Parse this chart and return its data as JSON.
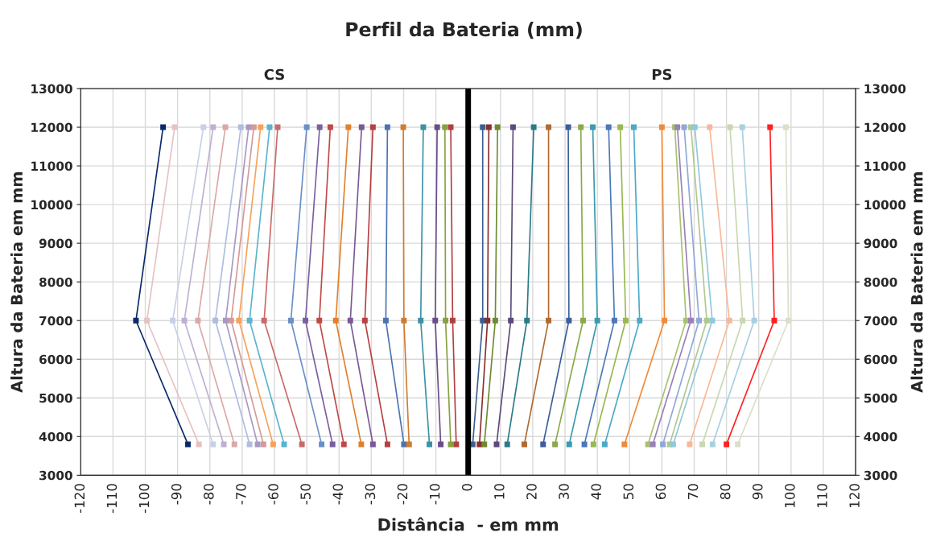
{
  "chart_data": {
    "type": "line",
    "title": "Perfil da Bateria (mm)",
    "xlabel": "Distância  - em mm",
    "ylabel": "Altura da Bateria em mm",
    "y2label": "Altura da Bateria em mm",
    "annotations": [
      "CS",
      "PS"
    ],
    "xlim": [
      -120,
      120
    ],
    "xticks": [
      -120,
      -110,
      -100,
      -90,
      -80,
      -70,
      -60,
      -50,
      -40,
      -30,
      -20,
      -10,
      0,
      10,
      20,
      30,
      40,
      50,
      60,
      70,
      80,
      90,
      100,
      110,
      120
    ],
    "ylim": [
      3000,
      13000
    ],
    "yticks": [
      3000,
      4000,
      5000,
      6000,
      7000,
      8000,
      9000,
      10000,
      11000,
      12000,
      13000
    ],
    "y2lim": [
      3000,
      13000
    ],
    "y2ticks": [
      3000,
      4000,
      5000,
      6000,
      7000,
      8000,
      9000,
      10000,
      11000,
      12000,
      13000
    ],
    "grid": true,
    "legend": false,
    "marker": "square",
    "line_style": "solid",
    "ref_lines": [
      {
        "axis": "x",
        "value": 0,
        "color": "#000000"
      }
    ],
    "series": [
      {
        "color": "#0b2a6b",
        "x": [
          -86.8,
          -102.9,
          -94.5
        ],
        "values": [
          3800,
          7000,
          12000
        ]
      },
      {
        "color": "#e6c2c2",
        "x": [
          -83.4,
          -99.5,
          -90.9
        ],
        "values": [
          3800,
          7000,
          12000
        ]
      },
      {
        "color": "#c8d0e6",
        "x": [
          -79.0,
          -91.5,
          -82.0
        ],
        "values": [
          3800,
          7000,
          12000
        ]
      },
      {
        "color": "#bdb0d0",
        "x": [
          -75.7,
          -87.9,
          -79.0
        ],
        "values": [
          3800,
          7000,
          12000
        ]
      },
      {
        "color": "#dba8a8",
        "x": [
          -72.4,
          -83.7,
          -75.2
        ],
        "values": [
          3800,
          7000,
          12000
        ]
      },
      {
        "color": "#aebde0",
        "x": [
          -67.7,
          -78.3,
          -70.4
        ],
        "values": [
          3800,
          7000,
          12000
        ]
      },
      {
        "color": "#a898c4",
        "x": [
          -65.2,
          -75.1,
          -68.0
        ],
        "values": [
          3800,
          7000,
          12000
        ]
      },
      {
        "color": "#d49a98",
        "x": [
          -63.4,
          -73.4,
          -66.4
        ],
        "values": [
          3800,
          7000,
          12000
        ]
      },
      {
        "color": "#f7a25a",
        "x": [
          -60.4,
          -71.0,
          -64.3
        ],
        "values": [
          3800,
          7000,
          12000
        ]
      },
      {
        "color": "#5ab4cc",
        "x": [
          -57.0,
          -67.7,
          -61.5
        ],
        "values": [
          3800,
          7000,
          12000
        ]
      },
      {
        "color": "#c96a6a",
        "x": [
          -51.5,
          -63.2,
          -59.0
        ],
        "values": [
          3800,
          7000,
          12000
        ]
      },
      {
        "color": "#6a8fc8",
        "x": [
          -45.4,
          -54.9,
          -50.0
        ],
        "values": [
          3800,
          7000,
          12000
        ]
      },
      {
        "color": "#7a5fa0",
        "x": [
          -42.0,
          -50.4,
          -46.0
        ],
        "values": [
          3800,
          7000,
          12000
        ]
      },
      {
        "color": "#c04848",
        "x": [
          -38.5,
          -46.1,
          -42.7
        ],
        "values": [
          3800,
          7000,
          12000
        ]
      },
      {
        "color": "#e0802c",
        "x": [
          -33.1,
          -41.0,
          -37.1
        ],
        "values": [
          3800,
          7000,
          12000
        ]
      },
      {
        "color": "#7a5896",
        "x": [
          -29.5,
          -36.5,
          -33.0
        ],
        "values": [
          3800,
          7000,
          12000
        ]
      },
      {
        "color": "#b84040",
        "x": [
          -25.0,
          -32.0,
          -29.5
        ],
        "values": [
          3800,
          7000,
          12000
        ]
      },
      {
        "color": "#4a74b0",
        "x": [
          -19.9,
          -25.5,
          -25.0
        ],
        "values": [
          3800,
          7000,
          12000
        ]
      },
      {
        "color": "#d07c30",
        "x": [
          -18.3,
          -19.9,
          -20.1
        ],
        "values": [
          3800,
          7000,
          12000
        ]
      },
      {
        "color": "#3a92a6",
        "x": [
          -12.0,
          -14.7,
          -13.9
        ],
        "values": [
          3800,
          7000,
          12000
        ]
      },
      {
        "color": "#6a4c8a",
        "x": [
          -8.5,
          -10.2,
          -9.6
        ],
        "values": [
          3800,
          7000,
          12000
        ]
      },
      {
        "color": "#88a040",
        "x": [
          -5.4,
          -7.0,
          -7.2
        ],
        "values": [
          3800,
          7000,
          12000
        ]
      },
      {
        "color": "#b04040",
        "x": [
          -3.7,
          -4.8,
          -5.4
        ],
        "values": [
          3800,
          7000,
          12000
        ]
      },
      {
        "color": "#3a5f8f",
        "x": [
          1.4,
          4.5,
          4.5
        ],
        "values": [
          3800,
          7000,
          12000
        ]
      },
      {
        "color": "#8b2e2e",
        "x": [
          3.5,
          6.0,
          6.4
        ],
        "values": [
          3800,
          7000,
          12000
        ]
      },
      {
        "color": "#6e8a30",
        "x": [
          5.0,
          8.4,
          9.1
        ],
        "values": [
          3800,
          7000,
          12000
        ]
      },
      {
        "color": "#5c4a7a",
        "x": [
          8.8,
          13.2,
          13.9
        ],
        "values": [
          3800,
          7000,
          12000
        ]
      },
      {
        "color": "#2a7a8a",
        "x": [
          12.1,
          18.2,
          20.3
        ],
        "values": [
          3800,
          7000,
          12000
        ]
      },
      {
        "color": "#b06a30",
        "x": [
          17.4,
          24.9,
          24.9
        ],
        "values": [
          3800,
          7000,
          12000
        ]
      },
      {
        "color": "#3a5f9a",
        "x": [
          23.2,
          31.2,
          31.0
        ],
        "values": [
          3800,
          7000,
          12000
        ]
      },
      {
        "color": "#8aaa48",
        "x": [
          26.9,
          35.6,
          34.9
        ],
        "values": [
          3800,
          7000,
          12000
        ]
      },
      {
        "color": "#3a9ab0",
        "x": [
          31.3,
          40.0,
          38.6
        ],
        "values": [
          3800,
          7000,
          12000
        ]
      },
      {
        "color": "#4a78b8",
        "x": [
          36.0,
          45.3,
          43.5
        ],
        "values": [
          3800,
          7000,
          12000
        ]
      },
      {
        "color": "#98b850",
        "x": [
          38.8,
          48.8,
          47.1
        ],
        "values": [
          3800,
          7000,
          12000
        ]
      },
      {
        "color": "#4aaac8",
        "x": [
          42.3,
          53.1,
          51.3
        ],
        "values": [
          3800,
          7000,
          12000
        ]
      },
      {
        "color": "#f08a3a",
        "x": [
          48.4,
          60.8,
          60.0
        ],
        "values": [
          3800,
          7000,
          12000
        ]
      },
      {
        "color": "#a8c070",
        "x": [
          55.7,
          67.5,
          64.0
        ],
        "values": [
          3800,
          7000,
          12000
        ]
      },
      {
        "color": "#9a80b8",
        "x": [
          57.2,
          69.0,
          64.8
        ],
        "values": [
          3800,
          7000,
          12000
        ]
      },
      {
        "color": "#90a8d8",
        "x": [
          60.3,
          71.5,
          66.9
        ],
        "values": [
          3800,
          7000,
          12000
        ]
      },
      {
        "color": "#b0c890",
        "x": [
          62.4,
          73.9,
          69.0
        ],
        "values": [
          3800,
          7000,
          12000
        ]
      },
      {
        "color": "#90c8dc",
        "x": [
          63.5,
          75.6,
          70.2
        ],
        "values": [
          3800,
          7000,
          12000
        ]
      },
      {
        "color": "#f8b898",
        "x": [
          68.6,
          80.9,
          74.8
        ],
        "values": [
          3800,
          7000,
          12000
        ]
      },
      {
        "color": "#c8d8b0",
        "x": [
          72.5,
          85.0,
          81.1
        ],
        "values": [
          3800,
          7000,
          12000
        ]
      },
      {
        "color": "#a8d0e0",
        "x": [
          75.7,
          88.6,
          84.9
        ],
        "values": [
          3800,
          7000,
          12000
        ]
      },
      {
        "color": "#ff2020",
        "x": [
          80.0,
          94.8,
          93.5
        ],
        "values": [
          3800,
          7000,
          12000
        ]
      },
      {
        "color": "#d8e0c8",
        "x": [
          83.5,
          99.2,
          98.4
        ],
        "values": [
          3800,
          7000,
          12000
        ]
      }
    ]
  }
}
